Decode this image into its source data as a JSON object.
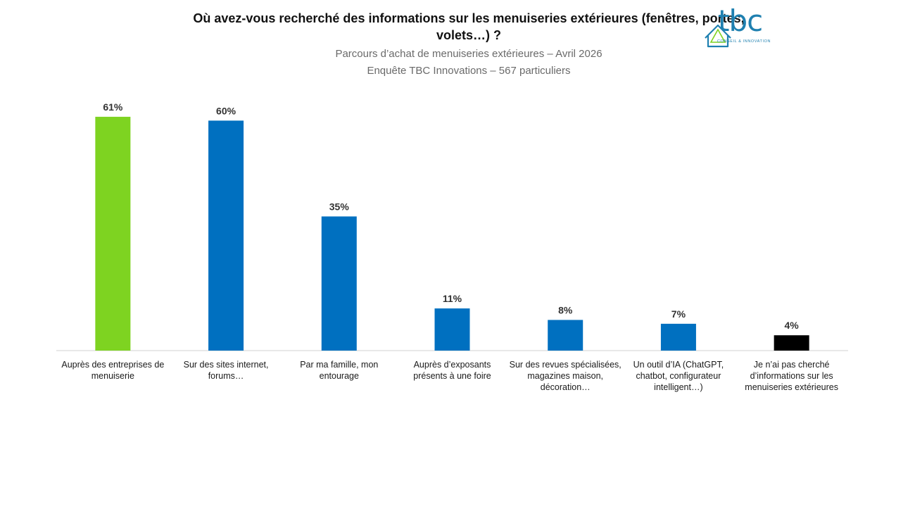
{
  "title": "Où avez-vous recherché des informations sur les menuiseries extérieures (fenêtres, portes, volets…) ?",
  "subtitle1": "Parcours d’achat de menuiseries extérieures – Avril 2026",
  "subtitle2": "Enquête TBC Innovations – 567 particuliers",
  "logo": {
    "text": "tbc",
    "tagline": "CONSEIL & INNOVATION",
    "icon": "house-outline-icon",
    "color": "#1f80b0"
  },
  "chart_data": {
    "type": "bar",
    "title": "Où avez-vous recherché des informations sur les menuiseries extérieures (fenêtres, portes, volets…) ?",
    "xlabel": "",
    "ylabel": "",
    "ylim": [
      0,
      63
    ],
    "grid": false,
    "legend": "none",
    "categories": [
      "Auprès des entreprises de menuiserie",
      "Sur des sites internet, forums…",
      "Par ma famille, mon entourage",
      "Auprès d’exposants présents à une foire",
      "Sur des revues spécialisées, magazines maison, décoration…",
      "Un outil d’IA (ChatGPT, chatbot, configurateur intelligent…)",
      "Je n’ai pas cherché d’informations sur les menuiseries extérieures"
    ],
    "values": [
      61,
      60,
      35,
      11,
      8,
      7,
      4
    ],
    "data_labels": [
      "61%",
      "60%",
      "35%",
      "11%",
      "8%",
      "7%",
      "4%"
    ],
    "colors": [
      "#7ed321",
      "#0070c0",
      "#0070c0",
      "#0070c0",
      "#0070c0",
      "#0070c0",
      "#000000"
    ]
  }
}
